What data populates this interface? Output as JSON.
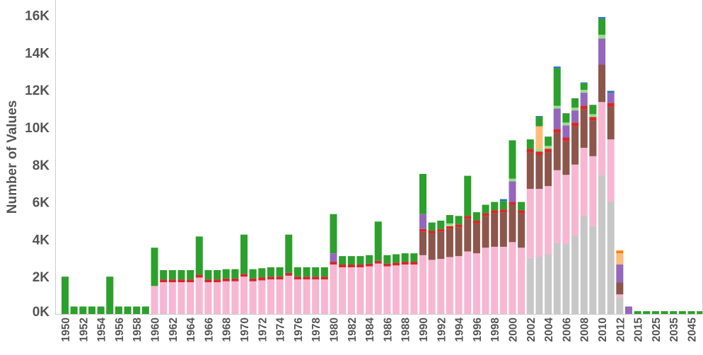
{
  "chart_data": {
    "type": "bar",
    "stacked": true,
    "title": "",
    "xlabel": "",
    "ylabel": "Number of Values",
    "ylim": [
      0,
      16500
    ],
    "yticks": [
      0,
      2000,
      4000,
      6000,
      8000,
      10000,
      12000,
      14000,
      16000
    ],
    "ytick_labels": [
      "0K",
      "2K",
      "4K",
      "6K",
      "8K",
      "10K",
      "12K",
      "14K",
      "16K"
    ],
    "grid": false,
    "legend": "none",
    "categories": [
      "1950",
      "1951",
      "1952",
      "1953",
      "1954",
      "1955",
      "1956",
      "1957",
      "1958",
      "1959",
      "1960",
      "1961",
      "1962",
      "1963",
      "1964",
      "1965",
      "1966",
      "1967",
      "1968",
      "1969",
      "1970",
      "1971",
      "1972",
      "1973",
      "1974",
      "1975",
      "1976",
      "1977",
      "1978",
      "1979",
      "1980",
      "1981",
      "1982",
      "1983",
      "1984",
      "1985",
      "1986",
      "1987",
      "1988",
      "1989",
      "1990",
      "1991",
      "1992",
      "1993",
      "1994",
      "1995",
      "1996",
      "1997",
      "1998",
      "1999",
      "2000",
      "2001",
      "2002",
      "2003",
      "2004",
      "2005",
      "2006",
      "2007",
      "2008",
      "2009",
      "2010",
      "2011",
      "2012",
      "2013",
      "2015",
      "2020",
      "2025",
      "2030",
      "2035",
      "2040",
      "2045",
      "2050"
    ],
    "xtick_labels_shown": [
      "1950",
      "1952",
      "1954",
      "1956",
      "1958",
      "1960",
      "1962",
      "1964",
      "1966",
      "1968",
      "1970",
      "1972",
      "1974",
      "1976",
      "1978",
      "1980",
      "1982",
      "1984",
      "1986",
      "1988",
      "1990",
      "1992",
      "1994",
      "1996",
      "1998",
      "2000",
      "2002",
      "2004",
      "2006",
      "2008",
      "2010",
      "2012",
      "2015",
      "2025",
      "2035",
      "2045"
    ],
    "series": [
      {
        "color": "#c7c7c7",
        "values": [
          0,
          0,
          0,
          0,
          0,
          0,
          0,
          0,
          0,
          0,
          0,
          0,
          0,
          0,
          0,
          0,
          0,
          0,
          0,
          0,
          0,
          0,
          0,
          0,
          0,
          0,
          0,
          0,
          0,
          0,
          0,
          0,
          0,
          0,
          0,
          0,
          0,
          0,
          0,
          0,
          0,
          0,
          0,
          0,
          0,
          0,
          0,
          0,
          0,
          0,
          0,
          0,
          3000,
          3050,
          3200,
          3800,
          3750,
          4200,
          5250,
          4700,
          7450,
          6000,
          900,
          0,
          0,
          0,
          0,
          0,
          0,
          0,
          0,
          0
        ]
      },
      {
        "color": "#f7b6d2",
        "values": [
          0,
          0,
          0,
          0,
          0,
          0,
          0,
          0,
          0,
          0,
          1500,
          1700,
          1700,
          1700,
          1700,
          1950,
          1700,
          1700,
          1750,
          1750,
          2000,
          1750,
          1800,
          1850,
          1850,
          2050,
          1850,
          1850,
          1850,
          1850,
          2650,
          2500,
          2500,
          2500,
          2550,
          2700,
          2550,
          2600,
          2650,
          2650,
          3150,
          2900,
          2950,
          3050,
          3100,
          3350,
          3250,
          3550,
          3600,
          3600,
          3850,
          3550,
          3700,
          3650,
          3650,
          3900,
          3700,
          3800,
          3650,
          3750,
          3900,
          3350,
          150,
          0,
          0,
          0,
          0,
          0,
          0,
          0,
          0,
          0
        ]
      },
      {
        "color": "#8c564b",
        "values": [
          0,
          0,
          0,
          0,
          0,
          0,
          0,
          0,
          0,
          0,
          0,
          0,
          0,
          0,
          0,
          0,
          0,
          0,
          0,
          0,
          0,
          0,
          0,
          0,
          0,
          0,
          0,
          0,
          0,
          0,
          0,
          0,
          0,
          0,
          0,
          0,
          0,
          0,
          0,
          0,
          1250,
          1400,
          1450,
          1500,
          1550,
          1750,
          1600,
          1700,
          1800,
          1850,
          2000,
          1850,
          1950,
          1800,
          1800,
          2000,
          1800,
          2050,
          2050,
          1900,
          2000,
          1750,
          650,
          0,
          0,
          0,
          0,
          0,
          0,
          0,
          0,
          0
        ]
      },
      {
        "color": "#d62728",
        "values": [
          0,
          0,
          0,
          0,
          0,
          0,
          0,
          0,
          0,
          0,
          0,
          150,
          150,
          150,
          150,
          150,
          150,
          150,
          150,
          150,
          150,
          150,
          150,
          150,
          150,
          150,
          150,
          150,
          150,
          150,
          150,
          150,
          150,
          150,
          150,
          150,
          150,
          150,
          150,
          150,
          150,
          150,
          150,
          150,
          150,
          150,
          150,
          150,
          150,
          150,
          150,
          150,
          200,
          200,
          200,
          200,
          200,
          200,
          200,
          200,
          0,
          200,
          0,
          0,
          0,
          0,
          0,
          0,
          0,
          0,
          0,
          0
        ]
      },
      {
        "color": "#9467bd",
        "values": [
          0,
          0,
          0,
          0,
          0,
          0,
          0,
          0,
          0,
          0,
          0,
          0,
          0,
          0,
          0,
          0,
          0,
          0,
          0,
          0,
          0,
          0,
          0,
          0,
          0,
          0,
          0,
          0,
          0,
          0,
          450,
          0,
          0,
          0,
          0,
          0,
          0,
          0,
          0,
          0,
          800,
          0,
          0,
          0,
          0,
          0,
          0,
          0,
          0,
          0,
          1100,
          0,
          0,
          0,
          0,
          1100,
          650,
          650,
          700,
          0,
          1400,
          550,
          950,
          400,
          0,
          0,
          0,
          0,
          0,
          0,
          0,
          0
        ]
      },
      {
        "color": "#98df8a",
        "values": [
          0,
          0,
          0,
          0,
          0,
          0,
          0,
          0,
          0,
          0,
          0,
          0,
          0,
          0,
          0,
          0,
          0,
          0,
          0,
          0,
          0,
          0,
          0,
          0,
          0,
          0,
          0,
          0,
          0,
          0,
          0,
          0,
          0,
          0,
          0,
          0,
          0,
          0,
          0,
          0,
          0,
          0,
          0,
          150,
          0,
          0,
          0,
          0,
          0,
          0,
          150,
          0,
          0,
          150,
          150,
          150,
          150,
          150,
          150,
          150,
          200,
          0,
          0,
          0,
          0,
          0,
          0,
          0,
          0,
          0,
          0,
          0
        ]
      },
      {
        "color": "#ffbb78",
        "values": [
          0,
          0,
          0,
          0,
          0,
          0,
          0,
          0,
          0,
          0,
          0,
          0,
          0,
          0,
          0,
          0,
          0,
          0,
          0,
          0,
          0,
          0,
          0,
          0,
          0,
          0,
          0,
          0,
          0,
          0,
          0,
          0,
          0,
          0,
          0,
          0,
          0,
          0,
          0,
          0,
          0,
          0,
          0,
          0,
          0,
          0,
          0,
          0,
          0,
          0,
          0,
          0,
          0,
          1200,
          0,
          0,
          0,
          0,
          0,
          0,
          0,
          0,
          600,
          0,
          0,
          0,
          0,
          0,
          0,
          0,
          0,
          0
        ]
      },
      {
        "color": "#ff7f0e",
        "values": [
          0,
          0,
          0,
          0,
          0,
          0,
          0,
          0,
          0,
          0,
          0,
          0,
          0,
          0,
          0,
          0,
          0,
          0,
          0,
          0,
          0,
          0,
          0,
          0,
          0,
          0,
          0,
          0,
          0,
          0,
          0,
          0,
          0,
          0,
          0,
          0,
          0,
          0,
          0,
          0,
          0,
          0,
          0,
          0,
          0,
          0,
          0,
          0,
          0,
          0,
          0,
          0,
          0,
          0,
          0,
          0,
          0,
          0,
          0,
          0,
          0,
          0,
          150,
          0,
          0,
          0,
          0,
          0,
          0,
          0,
          0,
          0
        ]
      },
      {
        "color": "#2ca02c",
        "values": [
          2000,
          400,
          400,
          400,
          400,
          2000,
          400,
          400,
          400,
          400,
          2050,
          500,
          500,
          500,
          500,
          2050,
          500,
          500,
          500,
          500,
          2100,
          500,
          500,
          500,
          500,
          2050,
          500,
          500,
          500,
          500,
          2100,
          450,
          450,
          450,
          450,
          2100,
          450,
          450,
          450,
          450,
          2150,
          450,
          450,
          450,
          450,
          2150,
          450,
          450,
          450,
          450,
          2050,
          450,
          500,
          500,
          500,
          2000,
          500,
          500,
          350,
          500,
          850,
          0,
          0,
          0,
          150,
          150,
          150,
          150,
          150,
          150,
          150,
          150
        ]
      },
      {
        "color": "#1f77b4",
        "values": [
          0,
          0,
          0,
          0,
          0,
          0,
          0,
          0,
          0,
          0,
          0,
          0,
          0,
          0,
          0,
          0,
          0,
          0,
          0,
          0,
          0,
          0,
          0,
          0,
          0,
          0,
          0,
          0,
          0,
          0,
          0,
          0,
          0,
          0,
          0,
          0,
          0,
          0,
          0,
          0,
          0,
          0,
          0,
          0,
          0,
          0,
          0,
          0,
          0,
          100,
          0,
          0,
          0,
          50,
          0,
          100,
          0,
          0,
          50,
          0,
          100,
          100,
          0,
          0,
          0,
          0,
          0,
          0,
          0,
          0,
          0,
          0
        ]
      }
    ]
  }
}
